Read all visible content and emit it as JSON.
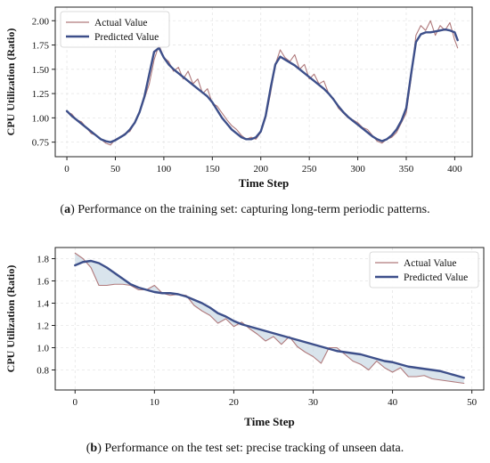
{
  "chart_data": [
    {
      "type": "line",
      "panel": "a",
      "xlabel": "Time Step",
      "ylabel": "CPU Utilization (Ratio)",
      "xlim": [
        -12,
        418
      ],
      "ylim": [
        0.6,
        2.14
      ],
      "xticks": [
        0,
        50,
        100,
        150,
        200,
        250,
        300,
        350,
        400
      ],
      "yticks": [
        0.75,
        1.0,
        1.25,
        1.5,
        1.75,
        2.0
      ],
      "ytick_labels": [
        "0.75",
        "1.00",
        "1.25",
        "1.50",
        "1.75",
        "2.00"
      ],
      "grid": true,
      "legend_position": "top-left",
      "fill_between": false,
      "series": [
        {
          "name": "Actual Value",
          "color": "#b07a7c",
          "x": [
            0,
            5,
            10,
            15,
            20,
            25,
            30,
            35,
            40,
            45,
            50,
            55,
            60,
            65,
            70,
            75,
            80,
            85,
            90,
            95,
            100,
            105,
            110,
            115,
            120,
            125,
            130,
            135,
            140,
            145,
            150,
            155,
            160,
            165,
            170,
            175,
            180,
            185,
            190,
            195,
            200,
            205,
            210,
            215,
            220,
            225,
            230,
            235,
            240,
            245,
            250,
            255,
            260,
            265,
            270,
            275,
            280,
            285,
            290,
            295,
            300,
            305,
            310,
            315,
            320,
            325,
            330,
            335,
            340,
            345,
            350,
            355,
            360,
            365,
            370,
            375,
            380,
            385,
            390,
            395,
            400,
            403
          ],
          "y": [
            1.06,
            1.04,
            0.98,
            0.96,
            0.9,
            0.84,
            0.82,
            0.78,
            0.74,
            0.72,
            0.78,
            0.8,
            0.84,
            0.86,
            0.95,
            1.05,
            1.2,
            1.35,
            1.6,
            1.75,
            1.62,
            1.58,
            1.48,
            1.52,
            1.4,
            1.48,
            1.35,
            1.4,
            1.25,
            1.3,
            1.15,
            1.12,
            1.05,
            0.98,
            0.92,
            0.88,
            0.82,
            0.78,
            0.8,
            0.78,
            0.85,
            1.0,
            1.25,
            1.55,
            1.7,
            1.62,
            1.58,
            1.65,
            1.5,
            1.55,
            1.4,
            1.45,
            1.35,
            1.38,
            1.25,
            1.2,
            1.1,
            1.05,
            1.0,
            0.98,
            0.95,
            0.9,
            0.88,
            0.82,
            0.76,
            0.74,
            0.78,
            0.8,
            0.85,
            0.95,
            1.05,
            1.4,
            1.85,
            1.95,
            1.9,
            2.0,
            1.85,
            1.95,
            1.9,
            1.98,
            1.8,
            1.72
          ]
        },
        {
          "name": "Predicted Value",
          "color": "#3d4f8a",
          "x": [
            0,
            5,
            10,
            15,
            20,
            25,
            30,
            35,
            40,
            45,
            50,
            55,
            60,
            65,
            70,
            75,
            80,
            85,
            90,
            95,
            100,
            105,
            110,
            115,
            120,
            125,
            130,
            135,
            140,
            145,
            150,
            155,
            160,
            165,
            170,
            175,
            180,
            185,
            190,
            195,
            200,
            205,
            210,
            215,
            220,
            225,
            230,
            235,
            240,
            245,
            250,
            255,
            260,
            265,
            270,
            275,
            280,
            285,
            290,
            295,
            300,
            305,
            310,
            315,
            320,
            325,
            330,
            335,
            340,
            345,
            350,
            355,
            360,
            365,
            370,
            375,
            380,
            385,
            390,
            395,
            400,
            403
          ],
          "y": [
            1.07,
            1.02,
            0.98,
            0.94,
            0.9,
            0.86,
            0.82,
            0.78,
            0.76,
            0.75,
            0.77,
            0.8,
            0.83,
            0.88,
            0.95,
            1.06,
            1.22,
            1.45,
            1.68,
            1.72,
            1.62,
            1.55,
            1.5,
            1.46,
            1.42,
            1.38,
            1.34,
            1.3,
            1.26,
            1.22,
            1.16,
            1.08,
            1.0,
            0.94,
            0.88,
            0.84,
            0.8,
            0.78,
            0.78,
            0.8,
            0.86,
            1.02,
            1.3,
            1.55,
            1.63,
            1.6,
            1.57,
            1.54,
            1.5,
            1.46,
            1.42,
            1.38,
            1.34,
            1.3,
            1.25,
            1.19,
            1.12,
            1.06,
            1.01,
            0.97,
            0.93,
            0.89,
            0.85,
            0.81,
            0.78,
            0.76,
            0.78,
            0.82,
            0.88,
            0.97,
            1.1,
            1.45,
            1.78,
            1.86,
            1.88,
            1.88,
            1.89,
            1.9,
            1.91,
            1.9,
            1.88,
            1.8
          ]
        }
      ]
    },
    {
      "type": "line",
      "panel": "b",
      "xlabel": "Time Step",
      "ylabel": "CPU Utilization (Ratio)",
      "xlim": [
        -2.5,
        51.5
      ],
      "ylim": [
        0.62,
        1.9
      ],
      "xticks": [
        0,
        10,
        20,
        30,
        40,
        50
      ],
      "yticks": [
        0.8,
        1.0,
        1.2,
        1.4,
        1.6,
        1.8
      ],
      "ytick_labels": [
        "0.8",
        "1.0",
        "1.2",
        "1.4",
        "1.6",
        "1.8"
      ],
      "grid": true,
      "legend_position": "top-right",
      "fill_between": true,
      "series": [
        {
          "name": "Actual Value",
          "color": "#b07a7c",
          "x": [
            0,
            1,
            2,
            3,
            4,
            5,
            6,
            7,
            8,
            9,
            10,
            11,
            12,
            13,
            14,
            15,
            16,
            17,
            18,
            19,
            20,
            21,
            22,
            23,
            24,
            25,
            26,
            27,
            28,
            29,
            30,
            31,
            32,
            33,
            34,
            35,
            36,
            37,
            38,
            39,
            40,
            41,
            42,
            43,
            44,
            45,
            46,
            47,
            48,
            49
          ],
          "y": [
            1.85,
            1.8,
            1.72,
            1.56,
            1.56,
            1.57,
            1.57,
            1.56,
            1.52,
            1.52,
            1.56,
            1.49,
            1.47,
            1.48,
            1.47,
            1.38,
            1.33,
            1.29,
            1.22,
            1.26,
            1.19,
            1.23,
            1.17,
            1.12,
            1.06,
            1.1,
            1.03,
            1.1,
            1.01,
            0.96,
            0.92,
            0.86,
            1.0,
            1.0,
            0.94,
            0.88,
            0.85,
            0.8,
            0.88,
            0.82,
            0.78,
            0.82,
            0.74,
            0.74,
            0.75,
            0.72,
            0.71,
            0.7,
            0.69,
            0.68
          ]
        },
        {
          "name": "Predicted Value",
          "color": "#3d4f8a",
          "x": [
            0,
            1,
            2,
            3,
            4,
            5,
            6,
            7,
            8,
            9,
            10,
            11,
            12,
            13,
            14,
            15,
            16,
            17,
            18,
            19,
            20,
            21,
            22,
            23,
            24,
            25,
            26,
            27,
            28,
            29,
            30,
            31,
            32,
            33,
            34,
            35,
            36,
            37,
            38,
            39,
            40,
            41,
            42,
            43,
            44,
            45,
            46,
            47,
            48,
            49
          ],
          "y": [
            1.74,
            1.77,
            1.78,
            1.76,
            1.72,
            1.67,
            1.62,
            1.57,
            1.54,
            1.52,
            1.5,
            1.49,
            1.49,
            1.48,
            1.46,
            1.43,
            1.4,
            1.36,
            1.31,
            1.28,
            1.24,
            1.21,
            1.19,
            1.17,
            1.15,
            1.13,
            1.11,
            1.09,
            1.07,
            1.05,
            1.03,
            1.01,
            0.99,
            0.97,
            0.96,
            0.95,
            0.94,
            0.92,
            0.9,
            0.88,
            0.87,
            0.85,
            0.83,
            0.82,
            0.81,
            0.8,
            0.79,
            0.77,
            0.75,
            0.73
          ]
        }
      ]
    }
  ],
  "captions": {
    "a": {
      "label": "a",
      "text": " Performance on the training set: capturing long-term periodic patterns."
    },
    "b": {
      "label": "b",
      "text": " Performance on the test set: precise tracking of unseen data."
    }
  },
  "colors": {
    "fill_between": "#c9d8e4",
    "grid": "#e6e6e6"
  }
}
